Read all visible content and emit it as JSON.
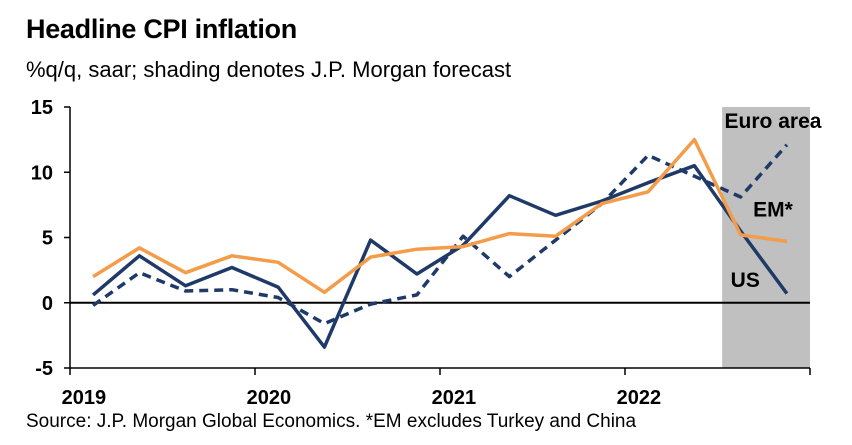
{
  "title": "Headline CPI inflation",
  "subtitle": "%q/q, saar; shading denotes J.P. Morgan forecast",
  "source": "Source: J.P. Morgan Global Economics. *EM excludes Turkey and China",
  "colors": {
    "us": "#1f3a68",
    "euro": "#1f3a68",
    "em": "#f39c4a",
    "shade": "#c0c0c0",
    "axis": "#000000"
  },
  "chart_data": {
    "type": "line",
    "title": "Headline CPI inflation",
    "ylabel": "%q/q, saar",
    "ylim": [
      -5,
      15
    ],
    "yticks": [
      -5,
      0,
      5,
      10,
      15
    ],
    "xlim": [
      0,
      16
    ],
    "year_ticks": [
      0,
      4,
      8,
      12,
      16
    ],
    "year_labels": [
      {
        "pos": 0.3,
        "label": "2019"
      },
      {
        "pos": 4.3,
        "label": "2020"
      },
      {
        "pos": 8.3,
        "label": "2021"
      },
      {
        "pos": 12.3,
        "label": "2022"
      }
    ],
    "forecast_shade": [
      14.1,
      16
    ],
    "x": [
      0.5,
      1.5,
      2.5,
      3.5,
      4.5,
      5.5,
      6.5,
      7.5,
      8.5,
      9.5,
      10.5,
      11.5,
      12.5,
      13.5,
      14.5,
      15.5
    ],
    "series": [
      {
        "name": "US",
        "style": "solid",
        "color_key": "us",
        "values": [
          0.6,
          3.6,
          1.3,
          2.7,
          1.2,
          -3.4,
          4.8,
          2.2,
          4.4,
          8.2,
          6.7,
          7.8,
          9.2,
          10.5,
          5.5,
          0.7
        ]
      },
      {
        "name": "Euro area",
        "style": "dashed",
        "color_key": "euro",
        "values": [
          -0.2,
          2.3,
          0.9,
          1.0,
          0.4,
          -1.6,
          -0.1,
          0.6,
          5.1,
          2.0,
          4.8,
          7.6,
          11.3,
          9.7,
          8.1,
          12.1
        ]
      },
      {
        "name": "EM*",
        "style": "solid",
        "color_key": "em",
        "values": [
          2.0,
          4.2,
          2.3,
          3.6,
          3.1,
          0.8,
          3.5,
          4.1,
          4.3,
          5.3,
          5.1,
          7.6,
          8.5,
          12.5,
          5.2,
          4.7
        ]
      }
    ],
    "series_labels": [
      {
        "name": "Euro area",
        "x": 15.2,
        "y": 13.4
      },
      {
        "name": "EM*",
        "x": 15.2,
        "y": 6.6
      },
      {
        "name": "US",
        "x": 14.6,
        "y": 1.2
      }
    ]
  }
}
